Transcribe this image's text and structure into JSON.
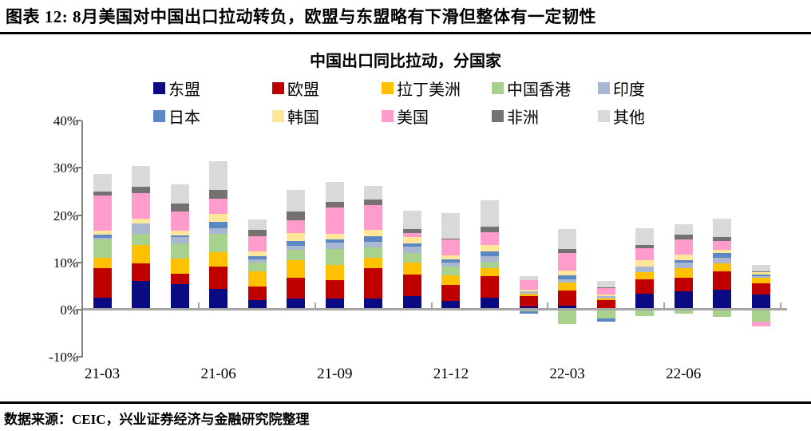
{
  "header": {
    "title": "图表 12:  8月美国对中国出口拉动转负，欧盟与东盟略有下滑但整体有一定韧性"
  },
  "footer": {
    "source": "数据来源：CEIC，兴业证券经济与金融研究院整理"
  },
  "chart_data": {
    "type": "bar",
    "subtype": "stacked",
    "title": "中国出口同比拉动，分国家",
    "unit": "%",
    "categories": [
      "21-03",
      "21-04",
      "21-05",
      "21-06",
      "21-07",
      "21-08",
      "21-09",
      "21-10",
      "21-11",
      "21-12",
      "22-01",
      "22-02",
      "22-03",
      "22-04",
      "22-05",
      "22-06",
      "22-07",
      "22-08"
    ],
    "x_tick_labels": [
      "21-03",
      "21-06",
      "21-09",
      "21-12",
      "22-03",
      "22-06"
    ],
    "x_tick_indices": [
      0,
      3,
      6,
      9,
      12,
      15
    ],
    "y_ticks": [
      {
        "label": "40%",
        "value": 40
      },
      {
        "label": "30%",
        "value": 30
      },
      {
        "label": "20%",
        "value": 20
      },
      {
        "label": "10%",
        "value": 10
      },
      {
        "label": "0%",
        "value": 0
      },
      {
        "label": "-10%",
        "value": -10
      }
    ],
    "ylim": [
      -10,
      40
    ],
    "grid": false,
    "legend_position": "top",
    "series": [
      {
        "name": "东盟",
        "color": "#0a0a82",
        "values": [
          2.5,
          6.0,
          5.4,
          4.4,
          2.1,
          2.4,
          2.4,
          2.4,
          2.8,
          1.9,
          2.5,
          0.6,
          0.9,
          0.4,
          3.3,
          3.9,
          4.3,
          3.2
        ]
      },
      {
        "name": "欧盟",
        "color": "#c00000",
        "values": [
          6.3,
          3.8,
          2.2,
          4.8,
          2.8,
          4.3,
          3.9,
          6.4,
          4.7,
          3.3,
          4.6,
          2.2,
          3.1,
          1.6,
          3.2,
          2.8,
          3.8,
          2.3
        ]
      },
      {
        "name": "拉丁美洲",
        "color": "#ffc000",
        "values": [
          2.1,
          3.8,
          3.2,
          3.0,
          3.2,
          3.8,
          3.1,
          2.1,
          2.4,
          2.1,
          1.7,
          0.6,
          1.8,
          0.4,
          1.4,
          2.1,
          1.7,
          1.3
        ]
      },
      {
        "name": "中国香港",
        "color": "#a9d18e",
        "values": [
          3.9,
          2.4,
          3.2,
          3.9,
          1.9,
          2.2,
          3.4,
          2.2,
          2.1,
          1.8,
          1.3,
          -0.3,
          -3.0,
          -1.8,
          -1.4,
          -0.8,
          -1.5,
          -2.5
        ]
      },
      {
        "name": "印度",
        "color": "#a9b7d1",
        "values": [
          0.4,
          2.3,
          1.4,
          1.1,
          0.6,
          0.8,
          1.4,
          1.3,
          1.4,
          0.9,
          1.2,
          0.5,
          0.6,
          0.4,
          1.2,
          1.2,
          1.2,
          0.3
        ]
      },
      {
        "name": "日本",
        "color": "#5b87c5",
        "values": [
          0.6,
          0.0,
          0.3,
          1.4,
          0.7,
          1.1,
          0.7,
          1.1,
          0.6,
          0.6,
          1.1,
          -0.5,
          0.9,
          -0.7,
          0.0,
          0.5,
          1.0,
          0.4
        ]
      },
      {
        "name": "韩国",
        "color": "#ffe699",
        "values": [
          1.0,
          1.0,
          1.1,
          1.7,
          1.1,
          1.7,
          1.1,
          1.4,
          1.3,
          0.9,
          1.2,
          0.3,
          0.9,
          0.4,
          1.3,
          1.1,
          0.7,
          0.4
        ]
      },
      {
        "name": "美国",
        "color": "#fe9ccc",
        "values": [
          7.4,
          5.3,
          4.0,
          3.2,
          3.1,
          2.6,
          5.6,
          5.2,
          1.0,
          3.3,
          2.8,
          2.1,
          3.8,
          1.4,
          2.6,
          3.3,
          1.8,
          -1.0
        ]
      },
      {
        "name": "非洲",
        "color": "#767171",
        "values": [
          0.8,
          1.4,
          1.7,
          1.8,
          1.4,
          1.8,
          1.2,
          1.2,
          0.8,
          0.3,
          1.1,
          0.0,
          0.9,
          0.1,
          0.7,
          0.9,
          0.8,
          0.2
        ]
      },
      {
        "name": "其他",
        "color": "#d9d9d9",
        "values": [
          3.8,
          4.4,
          4.1,
          6.1,
          2.2,
          4.7,
          4.3,
          2.9,
          3.9,
          5.3,
          5.6,
          0.8,
          4.2,
          1.3,
          3.6,
          2.3,
          4.0,
          1.4
        ]
      }
    ]
  }
}
